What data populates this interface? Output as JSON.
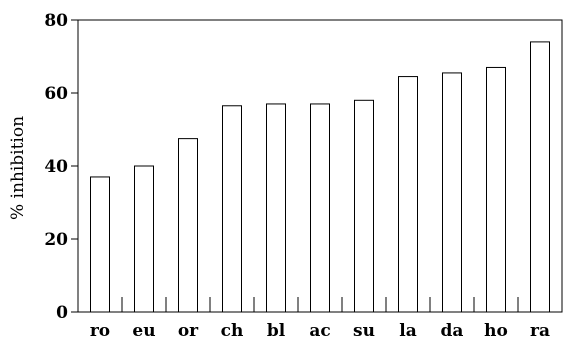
{
  "chart_data": {
    "type": "bar",
    "categories": [
      "ro",
      "eu",
      "or",
      "ch",
      "bl",
      "ac",
      "su",
      "la",
      "da",
      "ho",
      "ra"
    ],
    "values": [
      37,
      40,
      47.5,
      56.5,
      57,
      57,
      58,
      64.5,
      65.5,
      67,
      74
    ],
    "title": "",
    "xlabel": "",
    "ylabel": "% inhibition",
    "ylim": [
      0,
      80
    ],
    "yticks": [
      0,
      20,
      40,
      60,
      80
    ],
    "grid": false,
    "legend": "none",
    "bar_fill": "#ffffff",
    "bar_stroke": "#000000"
  }
}
